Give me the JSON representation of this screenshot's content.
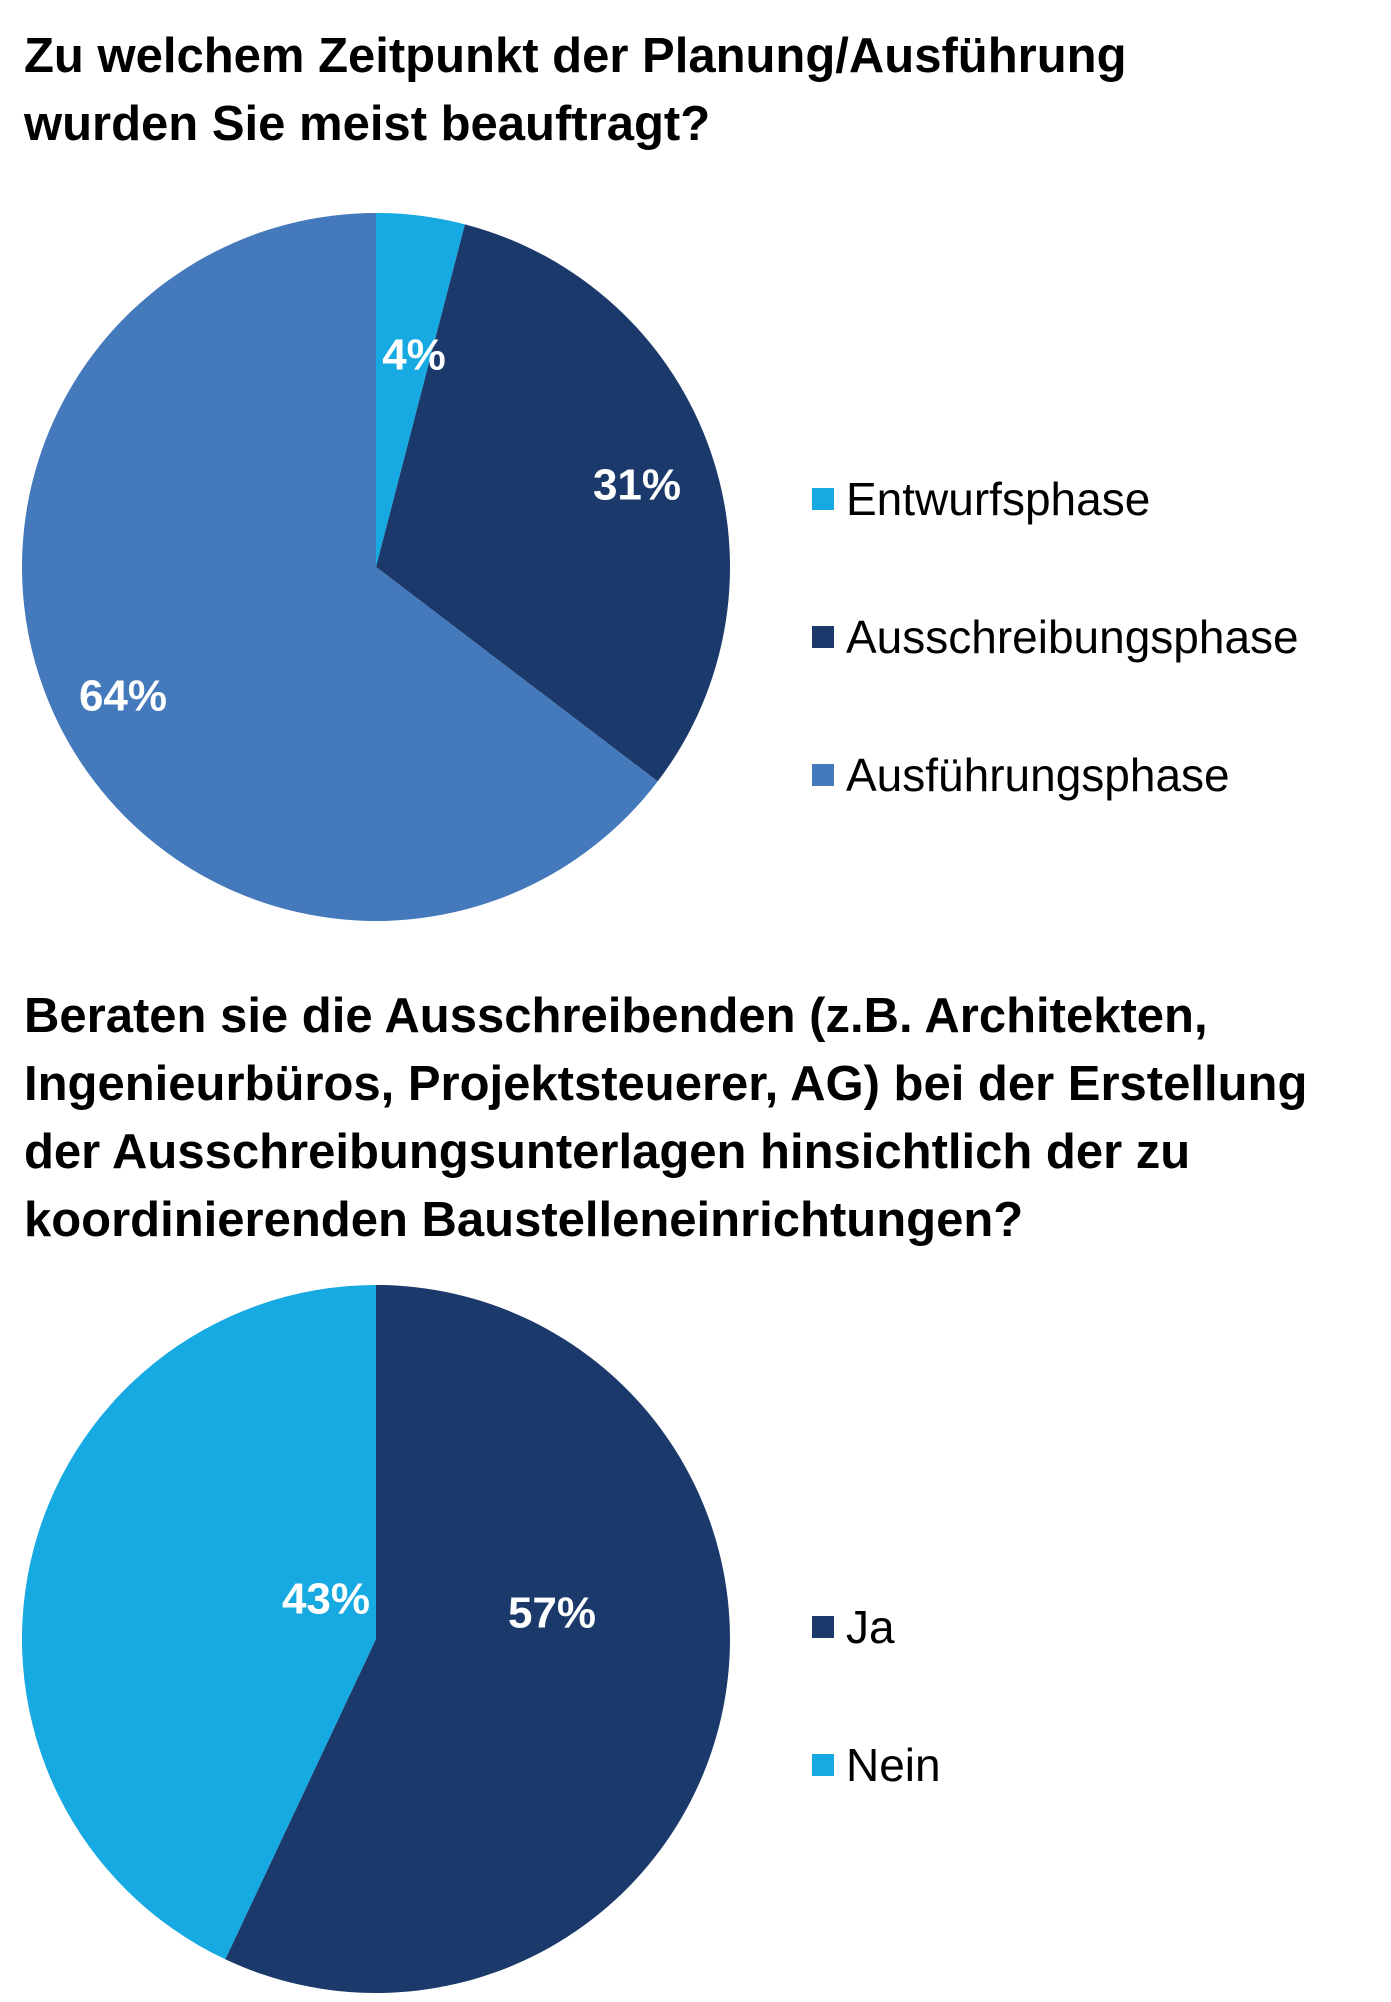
{
  "charts": [
    {
      "chart_data": {
        "type": "pie",
        "title": "Zu welchem Zeitpunkt der Planung/Ausführung\nwurden Sie meist beauftragt?",
        "categories": [
          "Entwurfsphase",
          "Ausschreibungsphase",
          "Ausführungsphase"
        ],
        "values": [
          4,
          31,
          64
        ],
        "labels": [
          "4%",
          "31%",
          "64%"
        ],
        "colors": [
          "#17a9e1",
          "#1b3a6b",
          "#4479bb"
        ],
        "legend_position": "right"
      }
    },
    {
      "chart_data": {
        "type": "pie",
        "title": "Beraten sie die Ausschreibenden (z.B. Architekten,\nIngenieurbüros, Projektsteuerer, AG) bei der Erstellung\nder Ausschreibungsunterlagen hinsichtlich der zu\nkoordinierenden Baustelleneinrichtungen?",
        "categories": [
          "Ja",
          "Nein"
        ],
        "values": [
          57,
          43
        ],
        "labels": [
          "57%",
          "43%"
        ],
        "colors": [
          "#1b3a6b",
          "#17a9e1"
        ],
        "legend_position": "right"
      }
    }
  ]
}
